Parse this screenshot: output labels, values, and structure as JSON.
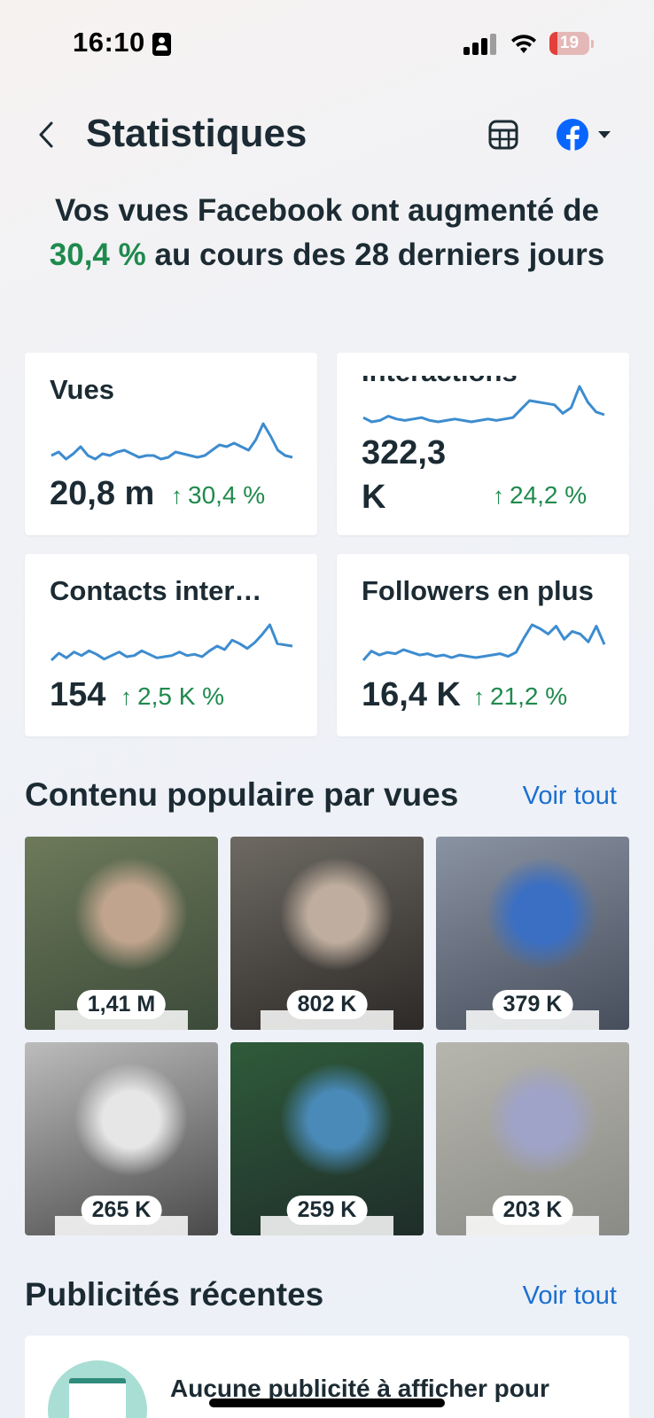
{
  "status_bar": {
    "time": "16:10",
    "battery_level": "19",
    "battery_fraction": 0.19
  },
  "header": {
    "title": "Statistiques",
    "back_icon": "chevron-left-icon",
    "table_icon": "table-icon",
    "account_icon": "facebook-icon"
  },
  "headline": {
    "before": "Vos vues Facebook ont augmenté de",
    "percent": "30,4 %",
    "after": "au cours des 28 derniers jours"
  },
  "metrics": [
    {
      "label": "Vues",
      "value": "20,8 m",
      "change": "30,4 %",
      "trend": [
        12,
        14,
        10,
        13,
        17,
        12,
        10,
        13,
        12,
        14,
        15,
        13,
        11,
        12,
        12,
        10,
        11,
        14,
        13,
        12,
        11,
        12,
        15,
        18,
        17,
        19,
        17,
        15,
        21,
        30,
        23,
        15,
        12,
        11
      ]
    },
    {
      "label": "Interactions",
      "value": "322,3 K",
      "change": "24,2 %",
      "trend": [
        14,
        11,
        12,
        15,
        13,
        12,
        13,
        14,
        12,
        11,
        12,
        13,
        12,
        11,
        12,
        13,
        12,
        13,
        14,
        20,
        26,
        25,
        24,
        23,
        17,
        21,
        36,
        25,
        18,
        16
      ]
    },
    {
      "label": "Contacts inter…",
      "value": "154",
      "change": "2,5 K %",
      "trend": [
        8,
        14,
        10,
        15,
        12,
        16,
        13,
        9,
        12,
        15,
        11,
        12,
        16,
        13,
        10,
        11,
        12,
        15,
        12,
        13,
        11,
        16,
        20,
        17,
        25,
        22,
        18,
        23,
        30,
        38,
        22,
        21,
        20
      ]
    },
    {
      "label": "Followers en plus",
      "value": "16,4 K",
      "change": "21,2 %",
      "trend": [
        8,
        15,
        12,
        14,
        13,
        16,
        14,
        12,
        13,
        11,
        12,
        10,
        12,
        11,
        10,
        11,
        12,
        13,
        11,
        14,
        25,
        35,
        32,
        28,
        34,
        24,
        30,
        28,
        22,
        34,
        20
      ]
    }
  ],
  "popular": {
    "title": "Contenu populaire par vues",
    "see_all": "Voir tout",
    "items": [
      {
        "views": "1,41 M",
        "colors": [
          "#6d7a5a",
          "#3c4a3a",
          "#c0a48e"
        ]
      },
      {
        "views": "802 K",
        "colors": [
          "#6e6a63",
          "#2c2927",
          "#bfae9f"
        ]
      },
      {
        "views": "379 K",
        "colors": [
          "#8a93a2",
          "#474e5c",
          "#3a6fc4"
        ]
      },
      {
        "views": "265 K",
        "colors": [
          "#bcbcbc",
          "#4a4a4a",
          "#e6e6e6"
        ]
      },
      {
        "views": "259 K",
        "colors": [
          "#2f5b3a",
          "#1f2d2a",
          "#4a8ab8"
        ]
      },
      {
        "views": "203 K",
        "colors": [
          "#b7b6ae",
          "#8a8b86",
          "#9fa3c8"
        ]
      }
    ]
  },
  "ads": {
    "title": "Publicités récentes",
    "see_all": "Voir tout",
    "empty_text": "Aucune publicité à afficher pour"
  }
}
